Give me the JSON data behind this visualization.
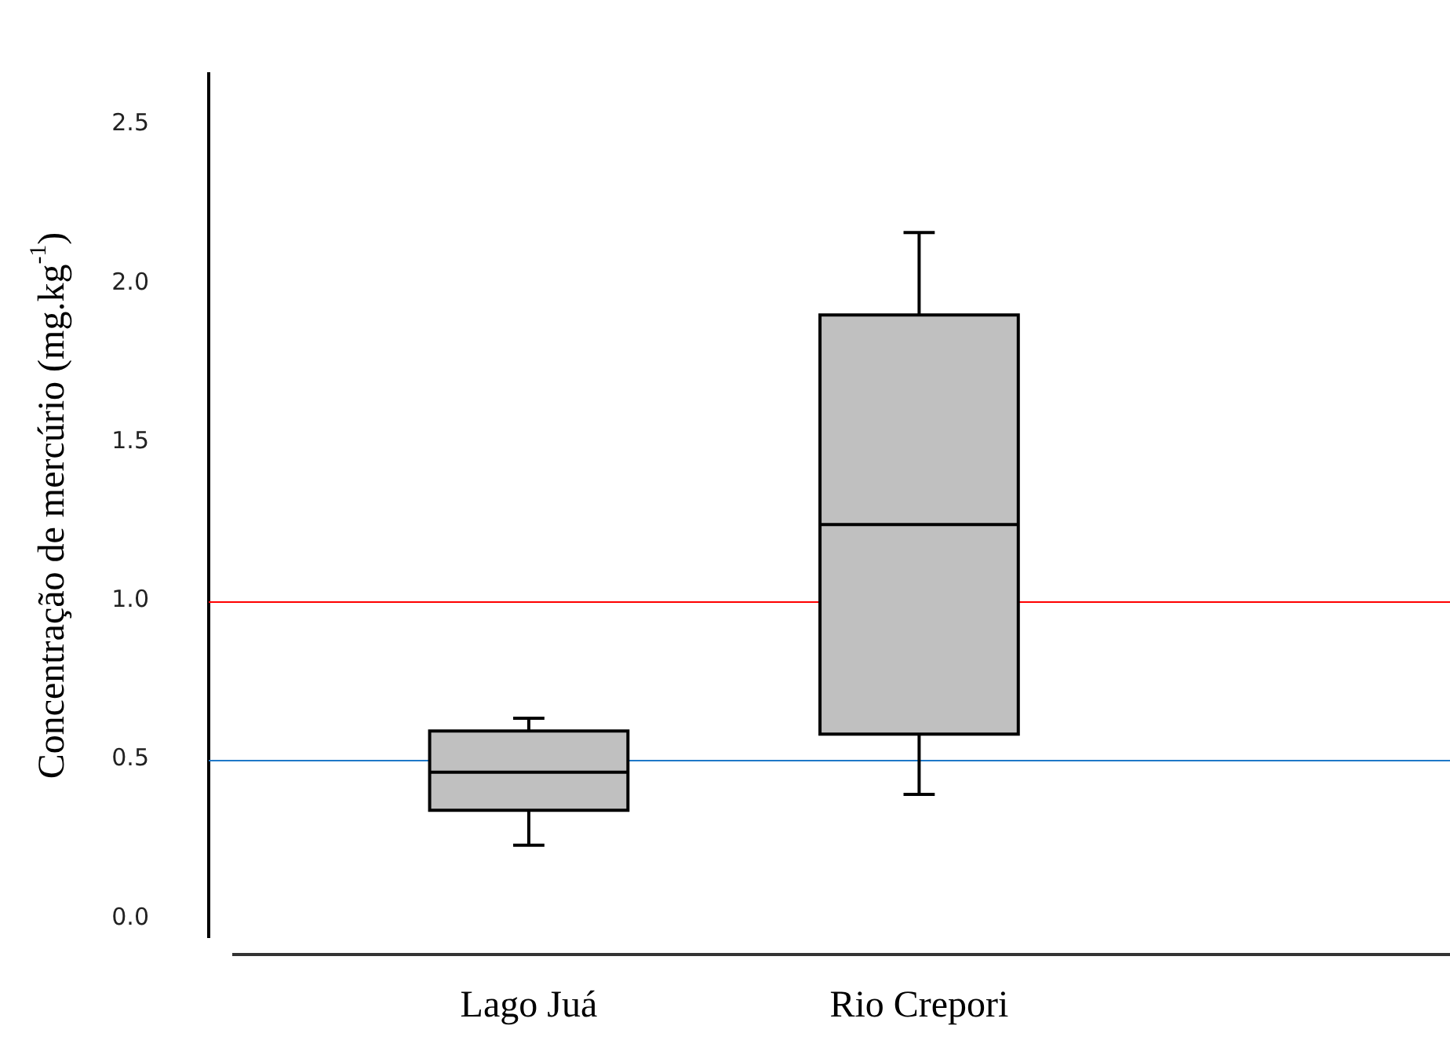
{
  "chart_data": {
    "type": "box",
    "ylabel": "Concentração de mercúrio (mg.kg$^{-1}$)",
    "categories": [
      "Lago Juá",
      "Rio Crepori"
    ],
    "boxes": [
      {
        "low": 0.23,
        "q1": 0.34,
        "median": 0.46,
        "q3": 0.59,
        "high": 0.63
      },
      {
        "low": 0.39,
        "q1": 0.58,
        "median": 1.24,
        "q3": 1.9,
        "high": 2.16
      }
    ],
    "color": "#c0c0c0",
    "ylim": [
      -0.06,
      2.66
    ],
    "yticks": [
      {
        "value": 0,
        "label": "0.0"
      },
      {
        "value": 0.5,
        "label": "0.5"
      },
      {
        "value": 1,
        "label": "1.0"
      },
      {
        "value": 1.5,
        "label": "1.5"
      },
      {
        "value": 2,
        "label": "2.0"
      },
      {
        "value": 2.5,
        "label": "2.5"
      }
    ],
    "ref_lines": [
      {
        "axis": "y",
        "value": 1,
        "color": "#ff0000"
      },
      {
        "axis": "y",
        "value": 0.5,
        "color": "#1f78c8"
      }
    ],
    "grid": false,
    "legend": false
  }
}
